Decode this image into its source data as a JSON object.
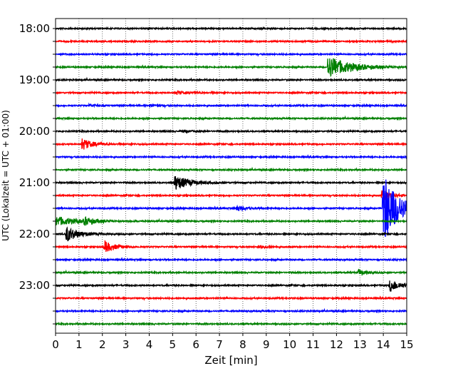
{
  "chart_data": {
    "type": "line",
    "title": "",
    "xlabel": "Zeit  [min]",
    "ylabel": "UTC (Lokalzeit = UTC + 01:00)",
    "xlim": [
      0,
      15
    ],
    "x_ticks": [
      0,
      1,
      2,
      3,
      4,
      5,
      6,
      7,
      8,
      9,
      10,
      11,
      12,
      13,
      14,
      15
    ],
    "y_tick_labels": [
      "18:00",
      "19:00",
      "20:00",
      "21:00",
      "22:00",
      "23:00"
    ],
    "trace_interval_min": 15,
    "start_time": "18:00",
    "grid": "vertical-dotted",
    "legend": "none",
    "color_cycle": [
      "#000000",
      "#ff0000",
      "#0000ff",
      "#008000"
    ],
    "traces": [
      {
        "time": "18:00",
        "events": []
      },
      {
        "time": "18:15",
        "events": []
      },
      {
        "time": "18:30",
        "events": []
      },
      {
        "time": "18:45",
        "events": [
          {
            "t": 11.6,
            "amp": 16,
            "decay": 0.9
          }
        ]
      },
      {
        "time": "19:00",
        "events": []
      },
      {
        "time": "19:15",
        "events": [
          {
            "t": 5.1,
            "amp": 2.5,
            "decay": 0.5
          }
        ]
      },
      {
        "time": "19:30",
        "events": [
          {
            "t": 1.4,
            "amp": 2,
            "decay": 0.3
          },
          {
            "t": 4.0,
            "amp": 2,
            "decay": 0.3
          }
        ]
      },
      {
        "time": "19:45",
        "events": []
      },
      {
        "time": "20:00",
        "events": [
          {
            "t": 5.3,
            "amp": 2,
            "decay": 0.4
          }
        ]
      },
      {
        "time": "20:15",
        "events": [
          {
            "t": 1.1,
            "amp": 9,
            "decay": 0.4
          }
        ]
      },
      {
        "time": "20:30",
        "events": []
      },
      {
        "time": "20:45",
        "events": []
      },
      {
        "time": "21:00",
        "events": [
          {
            "t": 5.05,
            "amp": 11,
            "decay": 0.6
          }
        ]
      },
      {
        "time": "21:15",
        "events": [
          {
            "t": 13.9,
            "amp": 8,
            "decay": 0.4
          }
        ]
      },
      {
        "time": "21:30",
        "events": [
          {
            "t": 7.7,
            "amp": 4,
            "decay": 0.4
          },
          {
            "t": 13.95,
            "amp": 55,
            "decay": 0.6
          }
        ]
      },
      {
        "time": "21:45",
        "events": [
          {
            "t": 0.0,
            "amp": 7,
            "decay": 0.8
          },
          {
            "t": 1.2,
            "amp": 5,
            "decay": 0.4
          }
        ]
      },
      {
        "time": "22:00",
        "events": [
          {
            "t": 0.4,
            "amp": 12,
            "decay": 0.5
          }
        ]
      },
      {
        "time": "22:15",
        "events": [
          {
            "t": 2.05,
            "amp": 9,
            "decay": 0.4
          },
          {
            "t": 8.6,
            "amp": 3,
            "decay": 0.3
          }
        ]
      },
      {
        "time": "22:30",
        "events": []
      },
      {
        "time": "22:45",
        "events": [
          {
            "t": 12.9,
            "amp": 5,
            "decay": 0.3
          }
        ]
      },
      {
        "time": "23:00",
        "events": [
          {
            "t": 14.25,
            "amp": 10,
            "decay": 0.4
          }
        ]
      },
      {
        "time": "23:15",
        "events": []
      },
      {
        "time": "23:30",
        "events": []
      },
      {
        "time": "23:45",
        "events": []
      }
    ]
  }
}
